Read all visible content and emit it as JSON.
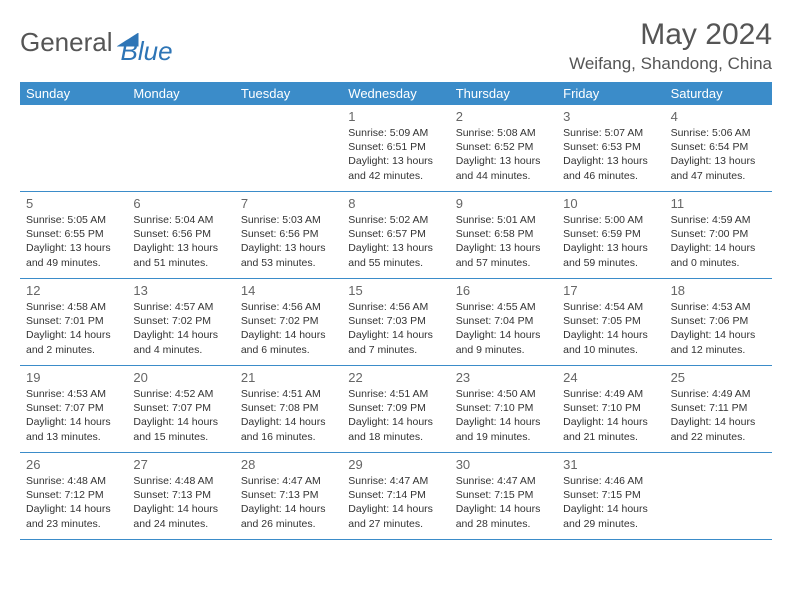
{
  "brand": {
    "part1": "General",
    "part2": "Blue"
  },
  "title": "May 2024",
  "location": "Weifang, Shandong, China",
  "colors": {
    "header_bg": "#3b8cc9",
    "header_text": "#ffffff",
    "divider": "#3b8cc9",
    "body_text": "#333333",
    "muted": "#666666",
    "brand_blue": "#2e75b6",
    "brand_gray": "#555555",
    "page_bg": "#ffffff"
  },
  "fonts": {
    "base": "Arial",
    "title_size": 30,
    "location_size": 17,
    "header_size": 13,
    "daynum_size": 13,
    "info_size": 10.5
  },
  "dayNames": [
    "Sunday",
    "Monday",
    "Tuesday",
    "Wednesday",
    "Thursday",
    "Friday",
    "Saturday"
  ],
  "weeks": [
    [
      null,
      null,
      null,
      {
        "d": "1",
        "sr": "5:09 AM",
        "ss": "6:51 PM",
        "dl": "13 hours and 42 minutes."
      },
      {
        "d": "2",
        "sr": "5:08 AM",
        "ss": "6:52 PM",
        "dl": "13 hours and 44 minutes."
      },
      {
        "d": "3",
        "sr": "5:07 AM",
        "ss": "6:53 PM",
        "dl": "13 hours and 46 minutes."
      },
      {
        "d": "4",
        "sr": "5:06 AM",
        "ss": "6:54 PM",
        "dl": "13 hours and 47 minutes."
      }
    ],
    [
      {
        "d": "5",
        "sr": "5:05 AM",
        "ss": "6:55 PM",
        "dl": "13 hours and 49 minutes."
      },
      {
        "d": "6",
        "sr": "5:04 AM",
        "ss": "6:56 PM",
        "dl": "13 hours and 51 minutes."
      },
      {
        "d": "7",
        "sr": "5:03 AM",
        "ss": "6:56 PM",
        "dl": "13 hours and 53 minutes."
      },
      {
        "d": "8",
        "sr": "5:02 AM",
        "ss": "6:57 PM",
        "dl": "13 hours and 55 minutes."
      },
      {
        "d": "9",
        "sr": "5:01 AM",
        "ss": "6:58 PM",
        "dl": "13 hours and 57 minutes."
      },
      {
        "d": "10",
        "sr": "5:00 AM",
        "ss": "6:59 PM",
        "dl": "13 hours and 59 minutes."
      },
      {
        "d": "11",
        "sr": "4:59 AM",
        "ss": "7:00 PM",
        "dl": "14 hours and 0 minutes."
      }
    ],
    [
      {
        "d": "12",
        "sr": "4:58 AM",
        "ss": "7:01 PM",
        "dl": "14 hours and 2 minutes."
      },
      {
        "d": "13",
        "sr": "4:57 AM",
        "ss": "7:02 PM",
        "dl": "14 hours and 4 minutes."
      },
      {
        "d": "14",
        "sr": "4:56 AM",
        "ss": "7:02 PM",
        "dl": "14 hours and 6 minutes."
      },
      {
        "d": "15",
        "sr": "4:56 AM",
        "ss": "7:03 PM",
        "dl": "14 hours and 7 minutes."
      },
      {
        "d": "16",
        "sr": "4:55 AM",
        "ss": "7:04 PM",
        "dl": "14 hours and 9 minutes."
      },
      {
        "d": "17",
        "sr": "4:54 AM",
        "ss": "7:05 PM",
        "dl": "14 hours and 10 minutes."
      },
      {
        "d": "18",
        "sr": "4:53 AM",
        "ss": "7:06 PM",
        "dl": "14 hours and 12 minutes."
      }
    ],
    [
      {
        "d": "19",
        "sr": "4:53 AM",
        "ss": "7:07 PM",
        "dl": "14 hours and 13 minutes."
      },
      {
        "d": "20",
        "sr": "4:52 AM",
        "ss": "7:07 PM",
        "dl": "14 hours and 15 minutes."
      },
      {
        "d": "21",
        "sr": "4:51 AM",
        "ss": "7:08 PM",
        "dl": "14 hours and 16 minutes."
      },
      {
        "d": "22",
        "sr": "4:51 AM",
        "ss": "7:09 PM",
        "dl": "14 hours and 18 minutes."
      },
      {
        "d": "23",
        "sr": "4:50 AM",
        "ss": "7:10 PM",
        "dl": "14 hours and 19 minutes."
      },
      {
        "d": "24",
        "sr": "4:49 AM",
        "ss": "7:10 PM",
        "dl": "14 hours and 21 minutes."
      },
      {
        "d": "25",
        "sr": "4:49 AM",
        "ss": "7:11 PM",
        "dl": "14 hours and 22 minutes."
      }
    ],
    [
      {
        "d": "26",
        "sr": "4:48 AM",
        "ss": "7:12 PM",
        "dl": "14 hours and 23 minutes."
      },
      {
        "d": "27",
        "sr": "4:48 AM",
        "ss": "7:13 PM",
        "dl": "14 hours and 24 minutes."
      },
      {
        "d": "28",
        "sr": "4:47 AM",
        "ss": "7:13 PM",
        "dl": "14 hours and 26 minutes."
      },
      {
        "d": "29",
        "sr": "4:47 AM",
        "ss": "7:14 PM",
        "dl": "14 hours and 27 minutes."
      },
      {
        "d": "30",
        "sr": "4:47 AM",
        "ss": "7:15 PM",
        "dl": "14 hours and 28 minutes."
      },
      {
        "d": "31",
        "sr": "4:46 AM",
        "ss": "7:15 PM",
        "dl": "14 hours and 29 minutes."
      },
      null
    ]
  ],
  "labels": {
    "sunrise": "Sunrise: ",
    "sunset": "Sunset: ",
    "daylight": "Daylight: "
  }
}
